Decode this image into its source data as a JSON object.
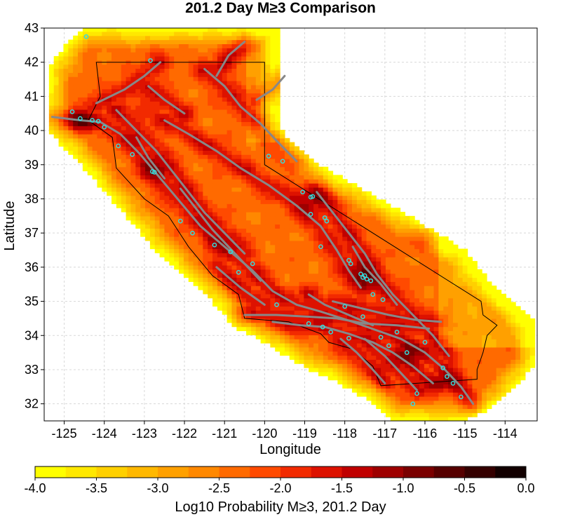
{
  "chart_data": {
    "type": "heatmap",
    "title": "201.2 Day M≥3 Comparison",
    "xlabel": "Longitude",
    "ylabel": "Latitude",
    "xlim": [
      -125.5,
      -113.2
    ],
    "ylim": [
      31.5,
      43.0
    ],
    "x_ticks": [
      -125,
      -124,
      -123,
      -122,
      -121,
      -120,
      -119,
      -118,
      -117,
      -116,
      -115,
      -114
    ],
    "y_ticks": [
      32,
      33,
      34,
      35,
      36,
      37,
      38,
      39,
      40,
      41,
      42,
      43
    ],
    "grid": true,
    "colorbar": {
      "label": "Log10 Probability M≥3, 201.2 Day",
      "range": [
        -4.0,
        0.0
      ],
      "ticks": [
        "-4.0",
        "-3.5",
        "-3.0",
        "-2.5",
        "-2.0",
        "-1.5",
        "-1.0",
        "-0.5",
        "0.0"
      ],
      "colors": [
        "#ffff00",
        "#ffe800",
        "#ffd000",
        "#ffb800",
        "#ffa000",
        "#ff8800",
        "#ff6a00",
        "#ff4a00",
        "#f22a00",
        "#dd1200",
        "#c00000",
        "#9e0000",
        "#7a0000",
        "#560000",
        "#340000",
        "#120000"
      ]
    },
    "heatmap_extent": "California gridded forecast region",
    "observed_events_color": "#33dddd",
    "fault_color": "#888888",
    "observed_events": [
      {
        "lon": -124.6,
        "lat": 40.35
      },
      {
        "lon": -124.3,
        "lat": 40.3
      },
      {
        "lon": -124.15,
        "lat": 40.27
      },
      {
        "lon": -124.45,
        "lat": 42.75
      },
      {
        "lon": -122.85,
        "lat": 42.05
      },
      {
        "lon": -123.65,
        "lat": 39.55
      },
      {
        "lon": -122.8,
        "lat": 38.8
      },
      {
        "lon": -122.75,
        "lat": 38.78
      },
      {
        "lon": -121.25,
        "lat": 36.65
      },
      {
        "lon": -120.85,
        "lat": 36.45
      },
      {
        "lon": -120.65,
        "lat": 35.85
      },
      {
        "lon": -119.9,
        "lat": 39.25
      },
      {
        "lon": -119.55,
        "lat": 39.1
      },
      {
        "lon": -118.85,
        "lat": 38.05
      },
      {
        "lon": -118.8,
        "lat": 38.07
      },
      {
        "lon": -118.85,
        "lat": 37.55
      },
      {
        "lon": -118.5,
        "lat": 37.45
      },
      {
        "lon": -118.45,
        "lat": 37.35
      },
      {
        "lon": -117.9,
        "lat": 36.2
      },
      {
        "lon": -117.85,
        "lat": 36.1
      },
      {
        "lon": -117.6,
        "lat": 35.8
      },
      {
        "lon": -117.55,
        "lat": 35.7
      },
      {
        "lon": -117.45,
        "lat": 35.65
      },
      {
        "lon": -117.35,
        "lat": 35.6
      },
      {
        "lon": -117.5,
        "lat": 35.75
      },
      {
        "lon": -117.05,
        "lat": 35.05
      },
      {
        "lon": -118.9,
        "lat": 34.35
      },
      {
        "lon": -118.55,
        "lat": 34.25
      },
      {
        "lon": -118.35,
        "lat": 34.1
      },
      {
        "lon": -117.9,
        "lat": 33.92
      },
      {
        "lon": -116.45,
        "lat": 33.5
      },
      {
        "lon": -116.9,
        "lat": 33.7
      },
      {
        "lon": -115.55,
        "lat": 33.05
      },
      {
        "lon": -115.45,
        "lat": 32.8
      },
      {
        "lon": -115.3,
        "lat": 32.6
      },
      {
        "lon": -115.1,
        "lat": 32.2
      },
      {
        "lon": -116.2,
        "lat": 32.3
      },
      {
        "lon": -116.3,
        "lat": 32.0
      },
      {
        "lon": -122.1,
        "lat": 37.35
      },
      {
        "lon": -121.8,
        "lat": 37.0
      },
      {
        "lon": -120.3,
        "lat": 36.1
      },
      {
        "lon": -119.7,
        "lat": 34.9
      },
      {
        "lon": -118.0,
        "lat": 34.85
      },
      {
        "lon": -117.55,
        "lat": 34.55
      },
      {
        "lon": -116.7,
        "lat": 34.1
      },
      {
        "lon": -116.0,
        "lat": 33.8
      },
      {
        "lon": -117.3,
        "lat": 35.2
      },
      {
        "lon": -124.8,
        "lat": 40.55
      },
      {
        "lon": -123.3,
        "lat": 39.3
      },
      {
        "lon": -124.0,
        "lat": 40.1
      },
      {
        "lon": -118.6,
        "lat": 36.6
      },
      {
        "lon": -119.05,
        "lat": 38.2
      },
      {
        "lon": -117.1,
        "lat": 33.95
      }
    ]
  }
}
